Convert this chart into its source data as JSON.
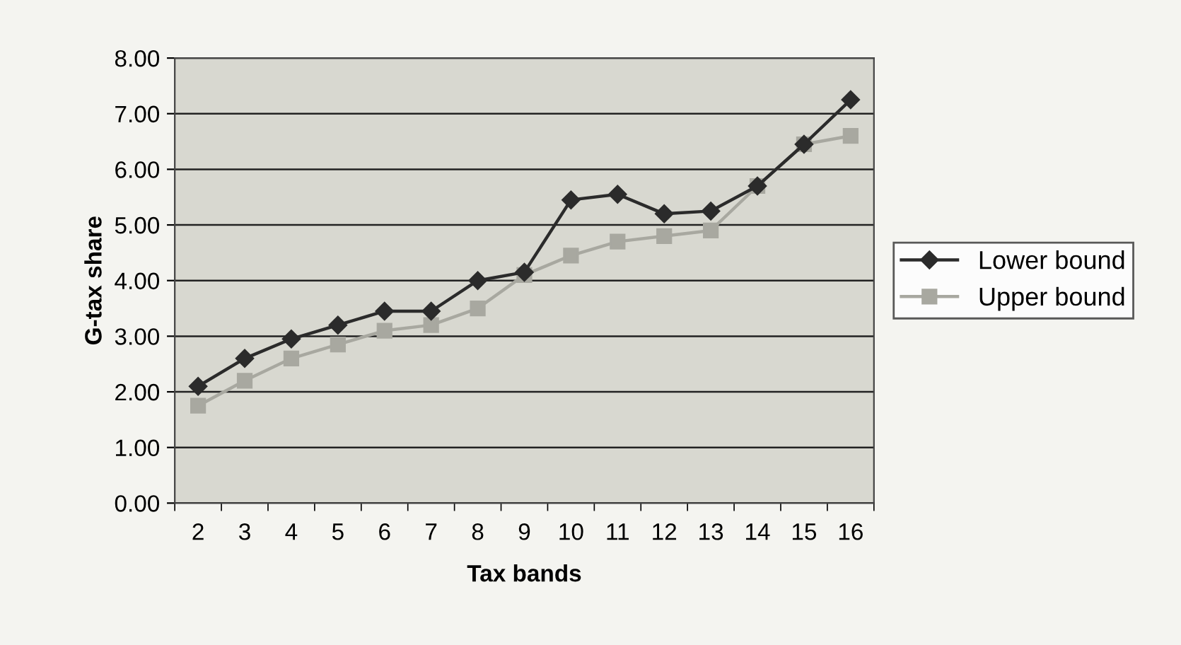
{
  "chart_data": {
    "type": "line",
    "xlabel": "Tax bands",
    "ylabel": "G-tax share",
    "categories": [
      "2",
      "3",
      "4",
      "5",
      "6",
      "7",
      "8",
      "9",
      "10",
      "11",
      "12",
      "13",
      "14",
      "15",
      "16"
    ],
    "series": [
      {
        "name": "Lower bound",
        "color": "#2b2b2b",
        "marker": "diamond",
        "values": [
          2.1,
          2.6,
          2.95,
          3.2,
          3.45,
          3.45,
          4.0,
          4.15,
          5.45,
          5.55,
          5.2,
          5.25,
          5.7,
          6.45,
          7.25
        ]
      },
      {
        "name": "Upper bound",
        "color": "#a8a8a0",
        "marker": "square",
        "values": [
          1.75,
          2.2,
          2.6,
          2.85,
          3.1,
          3.2,
          3.5,
          4.1,
          4.45,
          4.7,
          4.8,
          4.9,
          5.7,
          6.45,
          6.6
        ]
      }
    ],
    "ylim": [
      0,
      8
    ],
    "yticks": [
      {
        "value": 0,
        "label": "0.00"
      },
      {
        "value": 1,
        "label": "1.00"
      },
      {
        "value": 2,
        "label": "2.00"
      },
      {
        "value": 3,
        "label": "3.00"
      },
      {
        "value": 4,
        "label": "4.00"
      },
      {
        "value": 5,
        "label": "5.00"
      },
      {
        "value": 6,
        "label": "6.00"
      },
      {
        "value": 7,
        "label": "7.00"
      },
      {
        "value": 8,
        "label": "8.00"
      }
    ],
    "grid": "y",
    "legend": "right",
    "line_style": "solid"
  }
}
